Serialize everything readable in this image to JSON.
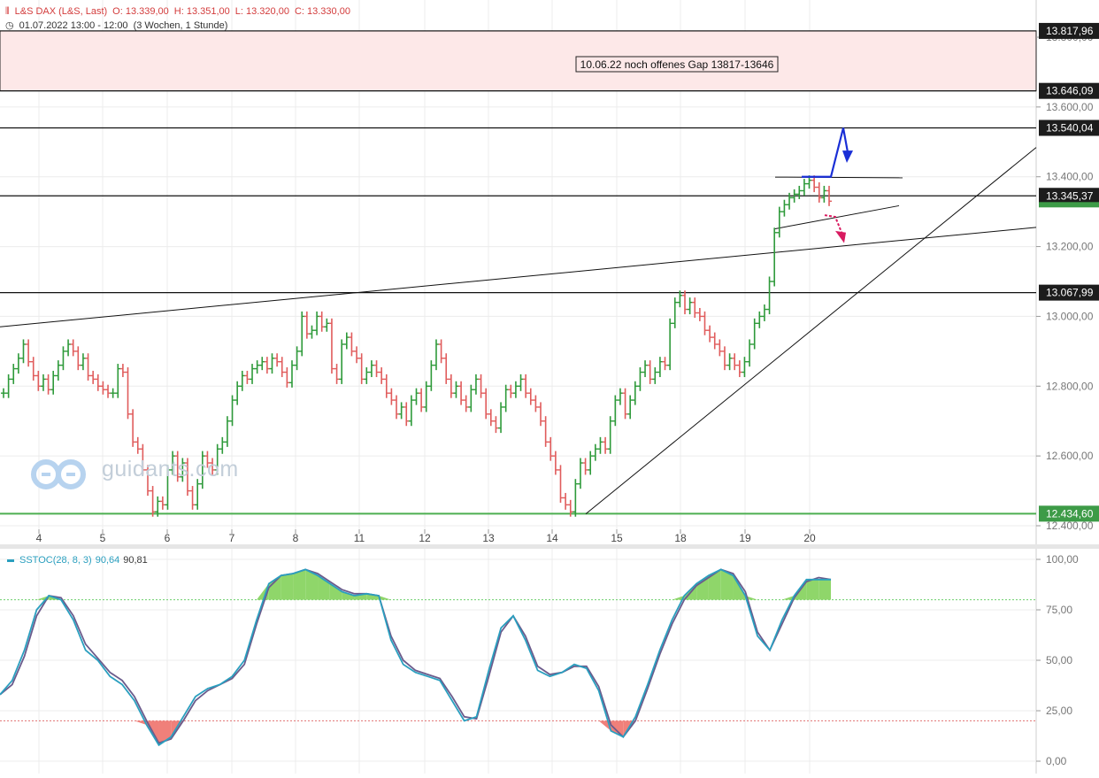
{
  "header": {
    "instrument": "L&S DAX (L&S, Last)",
    "open": "O: 13.339,00",
    "high": "H: 13.351,00",
    "low": "L: 13.320,00",
    "close": "C: 13.330,00",
    "date_range": "01.07.2022 13:00 - 12:00",
    "period": "(3 Wochen, 1 Stunde)"
  },
  "watermark": "guidants.com",
  "annotation": "10.06.22 noch offenes Gap 13817-13646",
  "price_axis": {
    "min": 12400,
    "max": 13800,
    "ticks": [
      "13.800,00",
      "13.600,00",
      "13.400,00",
      "13.200,00",
      "13.000,00",
      "12.800,00",
      "12.600,00",
      "12.400,00"
    ],
    "tick_values": [
      13800,
      13600,
      13400,
      13200,
      13000,
      12800,
      12600,
      12400
    ]
  },
  "level_labels": [
    {
      "value": 13817.96,
      "text": "13.817,96",
      "style": "dark"
    },
    {
      "value": 13646.09,
      "text": "13.646,09",
      "style": "dark"
    },
    {
      "value": 13540.04,
      "text": "13.540,04",
      "style": "dark"
    },
    {
      "value": 13345.37,
      "text": "13.345,37",
      "style": "dark"
    },
    {
      "value": 13067.99,
      "text": "13.067,99",
      "style": "dark"
    },
    {
      "value": 12434.6,
      "text": "12.434,60",
      "style": "green"
    }
  ],
  "x_axis": {
    "labels": [
      "4",
      "5",
      "6",
      "7",
      "8",
      "11",
      "12",
      "13",
      "14",
      "15",
      "18",
      "19",
      "20"
    ],
    "note": "trading days (July 2022), hourly bars"
  },
  "stochastic": {
    "name": "SSTOC(28, 8, 3)",
    "k_value": "90,64",
    "d_value": "90,81",
    "ticks": [
      "100,00",
      "75,00",
      "50,00",
      "25,00",
      "0,00"
    ],
    "tick_values": [
      100,
      75,
      50,
      25,
      0
    ],
    "overbought": 80,
    "oversold": 20
  },
  "colors": {
    "up": "#2e9a3a",
    "down": "#e05c5c",
    "gap_zone": "#fde8e8",
    "support": "#4caf50",
    "stoch_k": "#2a9fbf",
    "stoch_d": "#6b5b8c",
    "blue_arrow": "#1a2fd6",
    "magenta_arrow": "#d81b60"
  },
  "chart_data": [
    {
      "type": "ohlc",
      "title": "L&S DAX (L&S, Last)",
      "x_categories": [
        "4",
        "5",
        "6",
        "7",
        "8",
        "11",
        "12",
        "13",
        "14",
        "15",
        "18",
        "19",
        "20"
      ],
      "ylim": [
        12380,
        13830
      ],
      "closes": [
        12780,
        12820,
        12850,
        12880,
        12920,
        12870,
        12830,
        12800,
        12820,
        12790,
        12830,
        12860,
        12900,
        12920,
        12900,
        12860,
        12880,
        12830,
        12820,
        12800,
        12790,
        12780,
        12780,
        12850,
        12840,
        12720,
        12640,
        12620,
        12560,
        12500,
        12440,
        12470,
        12460,
        12560,
        12600,
        12540,
        12580,
        12500,
        12460,
        12520,
        12600,
        12580,
        12560,
        12620,
        12640,
        12700,
        12760,
        12800,
        12830,
        12820,
        12850,
        12860,
        12870,
        12850,
        12880,
        12870,
        12840,
        12810,
        12860,
        12900,
        13000,
        12950,
        12960,
        13000,
        12970,
        12980,
        12850,
        12820,
        12920,
        12940,
        12900,
        12880,
        12820,
        12840,
        12860,
        12840,
        12820,
        12780,
        12760,
        12720,
        12740,
        12700,
        12760,
        12780,
        12740,
        12800,
        12860,
        12920,
        12880,
        12820,
        12780,
        12800,
        12760,
        12740,
        12790,
        12820,
        12780,
        12720,
        12700,
        12680,
        12740,
        12790,
        12780,
        12800,
        12820,
        12780,
        12760,
        12740,
        12700,
        12640,
        12600,
        12560,
        12480,
        12460,
        12440,
        12520,
        12580,
        12560,
        12600,
        12620,
        12640,
        12620,
        12700,
        12760,
        12780,
        12720,
        12760,
        12800,
        12840,
        12860,
        12820,
        12840,
        12870,
        12860,
        12980,
        13040,
        13060,
        13020,
        13040,
        13010,
        13000,
        12960,
        12940,
        12920,
        12900,
        12860,
        12880,
        12860,
        12840,
        12870,
        12920,
        12980,
        13000,
        13020,
        13100,
        13240,
        13300,
        13320,
        13340,
        13350,
        13360,
        13380,
        13390,
        13370,
        13340,
        13360,
        13330
      ]
    },
    {
      "type": "line",
      "title": "SSTOC(28, 8, 3)",
      "ylim": [
        0,
        100
      ],
      "series": [
        {
          "name": "%K",
          "values": [
            33,
            40,
            55,
            75,
            82,
            80,
            70,
            55,
            50,
            42,
            38,
            30,
            18,
            8,
            12,
            22,
            32,
            36,
            38,
            42,
            50,
            70,
            88,
            92,
            93,
            95,
            92,
            88,
            84,
            82,
            83,
            82,
            60,
            48,
            44,
            42,
            40,
            30,
            20,
            22,
            45,
            66,
            72,
            60,
            45,
            42,
            44,
            48,
            46,
            35,
            15,
            12,
            22,
            38,
            55,
            70,
            82,
            88,
            92,
            95,
            92,
            82,
            62,
            55,
            70,
            82,
            90,
            90,
            90
          ]
        },
        {
          "name": "%D",
          "values": [
            33,
            38,
            52,
            72,
            82,
            81,
            72,
            58,
            51,
            44,
            40,
            32,
            20,
            9,
            11,
            20,
            30,
            35,
            38,
            41,
            48,
            68,
            86,
            92,
            93,
            95,
            93,
            89,
            85,
            83,
            83,
            82,
            62,
            50,
            45,
            43,
            41,
            32,
            22,
            21,
            42,
            64,
            72,
            62,
            47,
            43,
            44,
            47,
            47,
            37,
            18,
            12,
            20,
            36,
            53,
            68,
            80,
            87,
            91,
            95,
            93,
            84,
            64,
            55,
            68,
            81,
            89,
            91,
            90
          ]
        }
      ]
    }
  ]
}
